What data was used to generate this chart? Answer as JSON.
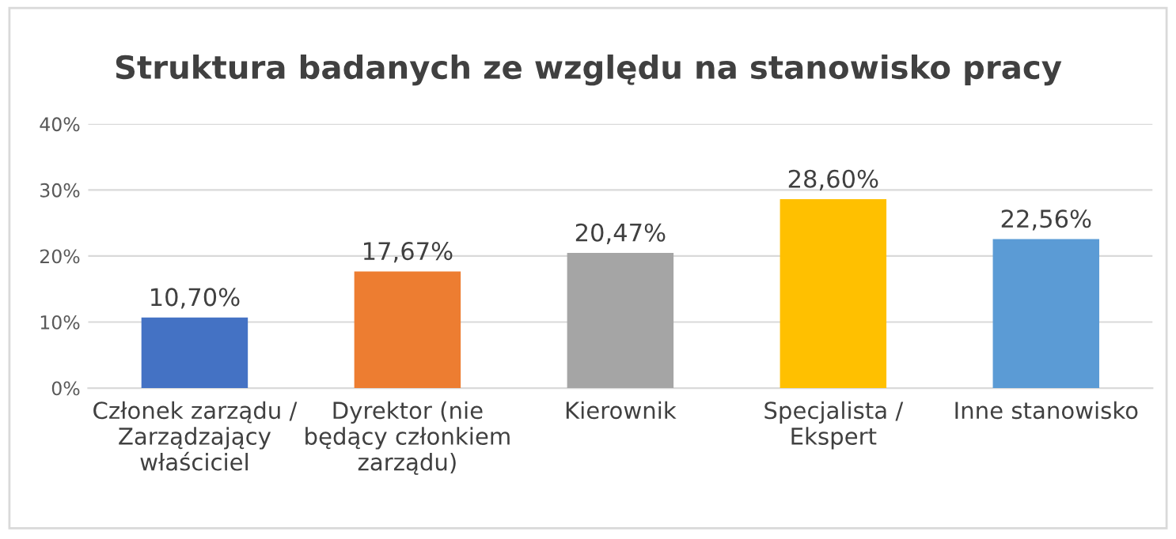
{
  "chart_data": {
    "type": "bar",
    "title": "Struktura badanych ze względu na stanowisko pracy",
    "categories": [
      "Członek zarządu /\nZarządzający\nwłaściciel",
      "Dyrektor (nie\nbędący członkiem\nzarządu)",
      "Kierownik",
      "Specjalista /\nEkspert",
      "Inne stanowisko"
    ],
    "values": [
      10.7,
      17.67,
      20.47,
      28.6,
      22.56
    ],
    "colors": [
      "#4472c4",
      "#ed7d31",
      "#a5a5a5",
      "#ffc000",
      "#5b9bd5"
    ],
    "value_labels": [
      "10,70%",
      "17,67%",
      "20,47%",
      "28,60%",
      "22,56%"
    ],
    "ylim": [
      0,
      40
    ],
    "yticks": [
      {
        "value": 0,
        "label": "0%"
      },
      {
        "value": 10,
        "label": "10%"
      },
      {
        "value": 20,
        "label": "20%"
      },
      {
        "value": 30,
        "label": "30%"
      },
      {
        "value": 40,
        "label": "40%"
      }
    ],
    "grid": "y",
    "legend": false
  }
}
